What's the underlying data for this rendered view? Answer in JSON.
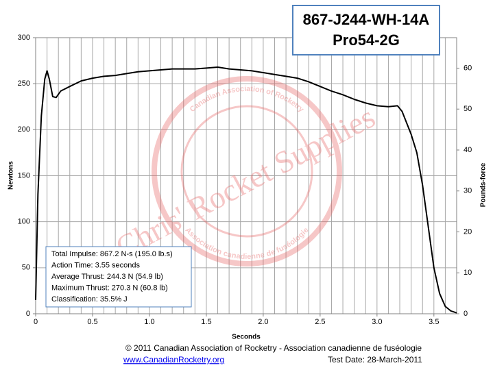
{
  "chart_data": {
    "type": "line",
    "title": "867-J244-WH-14A",
    "subtitle": "Pro54-2G",
    "x_label": "Seconds",
    "y_label": "Newtons",
    "y2_label": "Pounds-force",
    "x": [
      0,
      0.02,
      0.05,
      0.08,
      0.1,
      0.12,
      0.15,
      0.18,
      0.22,
      0.3,
      0.4,
      0.5,
      0.6,
      0.7,
      0.8,
      0.9,
      1.0,
      1.1,
      1.2,
      1.3,
      1.4,
      1.5,
      1.6,
      1.7,
      1.8,
      1.9,
      2.0,
      2.1,
      2.2,
      2.3,
      2.4,
      2.5,
      2.6,
      2.7,
      2.8,
      2.9,
      3.0,
      3.1,
      3.18,
      3.22,
      3.3,
      3.35,
      3.4,
      3.45,
      3.5,
      3.55,
      3.6,
      3.65,
      3.7
    ],
    "series": [
      {
        "color": "#000000",
        "values": [
          15,
          130,
          215,
          255,
          264,
          255,
          236,
          235,
          242,
          247,
          253,
          256,
          258,
          259,
          261,
          263,
          264,
          265,
          266,
          266,
          266,
          267,
          268,
          266,
          265,
          264,
          262,
          260,
          258,
          256,
          252,
          247,
          242,
          238,
          233,
          229,
          226,
          225,
          226,
          220,
          195,
          175,
          140,
          95,
          50,
          22,
          8,
          3,
          1
        ]
      }
    ],
    "xlim": [
      0,
      3.7
    ],
    "xticks": [
      0,
      0.5,
      {
        "value": 1,
        "label": "1.0"
      },
      1.5,
      {
        "value": 2,
        "label": "2.0"
      },
      2.5,
      {
        "value": 3,
        "label": "3.0"
      },
      3.5
    ],
    "xgrid": [
      0,
      0.1,
      0.2,
      0.3,
      0.4,
      0.5,
      0.6,
      0.7,
      0.8,
      0.9,
      1.0,
      1.1,
      1.2,
      1.3,
      1.4,
      1.5,
      1.6,
      1.7,
      1.8,
      1.9,
      2.0,
      2.1,
      2.2,
      2.3,
      2.4,
      2.5,
      2.6,
      2.7,
      2.8,
      2.9,
      3.0,
      3.1,
      3.2,
      3.3,
      3.4,
      3.5,
      3.6,
      3.7
    ],
    "ylim": [
      0,
      300
    ],
    "yticks": [
      0,
      50,
      100,
      150,
      200,
      250,
      300
    ],
    "y2lim": [
      0,
      67.44
    ],
    "y2ticks": [
      0,
      10,
      20,
      30,
      40,
      50,
      60
    ],
    "grid": true,
    "info": [
      "Total Impulse: 867.2 N-s (195.0 lb.s)",
      "Action Time: 3.55 seconds",
      "Average Thrust: 244.3 N (54.9 lb)",
      "Maximum Thrust: 270.3 N (60.8 lb)",
      "Classification: 35.5% J"
    ],
    "watermark": [
      "Chris' Rocket Supplies",
      "Canadian Association of Rocketry",
      "Association canadienne de fuséologie"
    ],
    "footer": {
      "copyright": "© 2011 Canadian Association of Rocketry - Association canadienne de fuséologie",
      "link": "www.CanadianRocketry.org",
      "date": "Test  Date: 28-March-2011"
    }
  }
}
